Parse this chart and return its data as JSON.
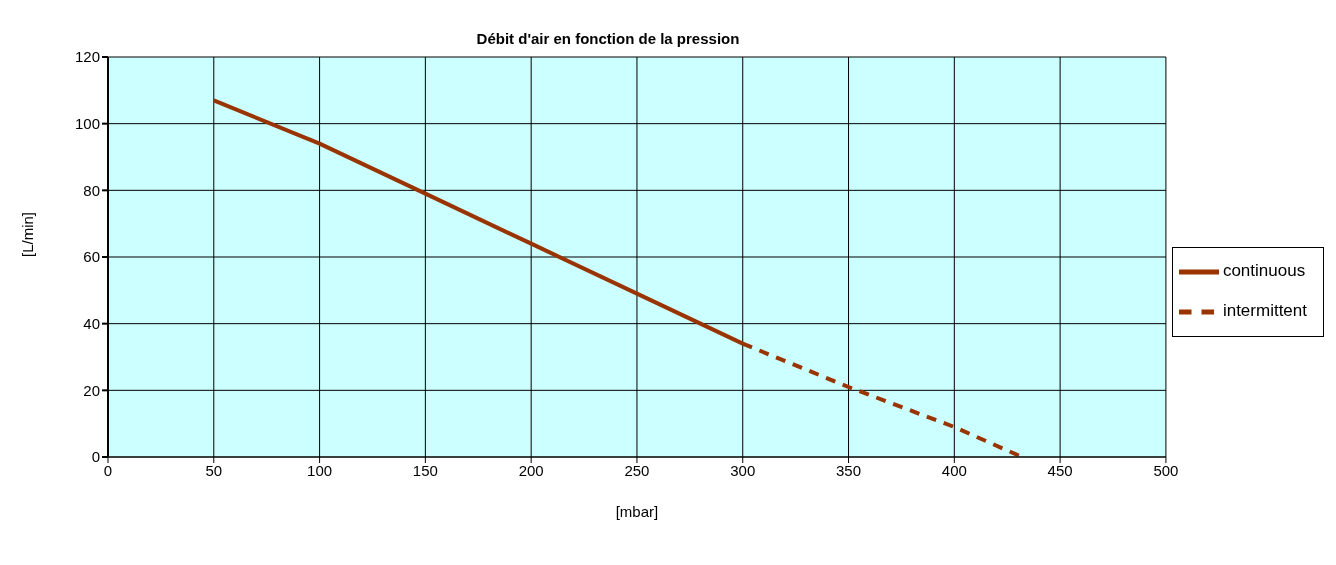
{
  "chart_data": {
    "type": "line",
    "subtitle": "Débit d'air en fonction de la pression",
    "xlabel": "[mbar]",
    "ylabel": "[L/min]",
    "xlim": [
      0,
      500
    ],
    "xticks": [
      0,
      50,
      100,
      150,
      200,
      250,
      300,
      350,
      400,
      450,
      500
    ],
    "ylim": [
      0,
      120
    ],
    "yticks": [
      0,
      20,
      40,
      60,
      80,
      100,
      120
    ],
    "grid": true,
    "legend": "right",
    "marker": "none",
    "series": [
      {
        "name": "continuous",
        "color": "#993300",
        "line_style": "solid",
        "x": [
          50,
          100,
          150,
          200,
          250,
          300
        ],
        "values": [
          107,
          94,
          79,
          64,
          49,
          34
        ]
      },
      {
        "name": "intermittent",
        "color": "#993300",
        "line_style": "dashed",
        "x": [
          300,
          350,
          400,
          432
        ],
        "values": [
          34,
          21,
          9,
          0
        ]
      }
    ]
  }
}
